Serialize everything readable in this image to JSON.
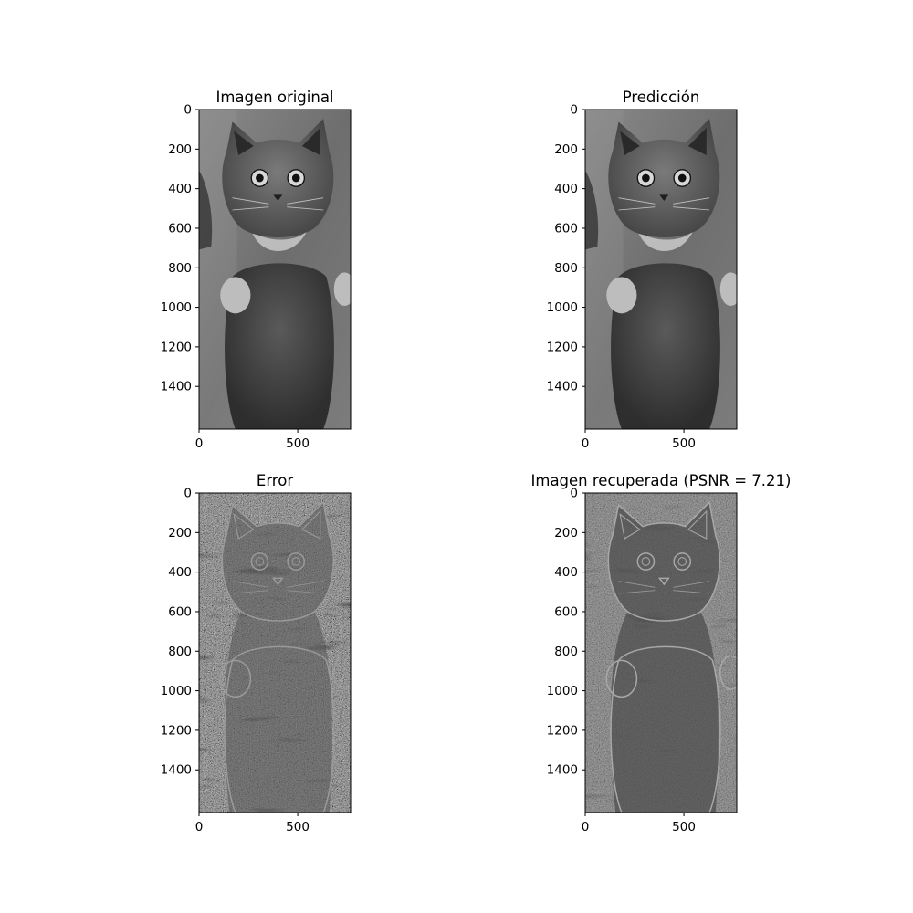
{
  "chart_data": [
    {
      "type": "image",
      "title": "Imagen original",
      "image_content": "cat",
      "tone": "original",
      "xticks": [
        0,
        500
      ],
      "yticks": [
        0,
        200,
        400,
        600,
        800,
        1000,
        1200,
        1400
      ],
      "xlim": [
        0,
        768
      ],
      "ylim": [
        1616,
        0
      ],
      "colormap": "gray"
    },
    {
      "type": "image",
      "title": "Predicción",
      "image_content": "cat",
      "tone": "original",
      "xticks": [
        0,
        500
      ],
      "yticks": [
        0,
        200,
        400,
        600,
        800,
        1000,
        1200,
        1400
      ],
      "xlim": [
        0,
        768
      ],
      "ylim": [
        1616,
        0
      ],
      "colormap": "gray"
    },
    {
      "type": "image",
      "title": "Error",
      "image_content": "cat",
      "tone": "error",
      "xticks": [
        0,
        500
      ],
      "yticks": [
        0,
        200,
        400,
        600,
        800,
        1000,
        1200,
        1400
      ],
      "xlim": [
        0,
        768
      ],
      "ylim": [
        1616,
        0
      ],
      "colormap": "gray"
    },
    {
      "type": "image",
      "title": "Imagen recuperada (PSNR = 7.21)",
      "image_content": "cat",
      "tone": "recovered",
      "xticks": [
        0,
        500
      ],
      "yticks": [
        0,
        200,
        400,
        600,
        800,
        1000,
        1200,
        1400
      ],
      "xlim": [
        0,
        768
      ],
      "ylim": [
        1616,
        0
      ],
      "colormap": "gray"
    }
  ]
}
